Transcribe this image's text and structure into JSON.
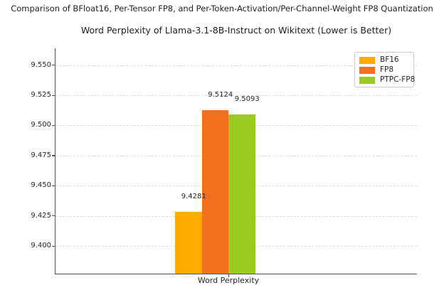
{
  "figure": {
    "suptitle": "Comparison of BFloat16, Per-Tensor FP8, and Per-Token-Activation/Per-Channel-Weight FP8 Quantization"
  },
  "chart_data": {
    "type": "bar",
    "title": "Word Perplexity of Llama-3.1-8B-Instruct on Wikitext (Lower is Better)",
    "categories": [
      "Word Perplexity"
    ],
    "series": [
      {
        "name": "BF16",
        "color": "#FFAB00",
        "values": [
          9.4281
        ],
        "value_labels": [
          "9.4281"
        ]
      },
      {
        "name": "FP8",
        "color": "#F2701D",
        "values": [
          9.5124
        ],
        "value_labels": [
          "9.5124"
        ]
      },
      {
        "name": "PTPC-FP8",
        "color": "#9CCB20",
        "values": [
          9.5093
        ],
        "value_labels": [
          "9.5093"
        ]
      }
    ],
    "xlabel": "",
    "ylabel": "",
    "ylim": [
      9.377,
      9.564
    ],
    "yticks": [
      9.4,
      9.425,
      9.45,
      9.475,
      9.5,
      9.525,
      9.55
    ],
    "ytick_labels": [
      "9.400",
      "9.425",
      "9.450",
      "9.475",
      "9.500",
      "9.525",
      "9.550"
    ],
    "grid": {
      "axis": "y",
      "style": "dashed",
      "color": "#dcdcdc"
    },
    "legend": {
      "position": "upper-right",
      "entries": [
        "BF16",
        "FP8",
        "PTPC-FP8"
      ]
    }
  },
  "colors": {
    "background": "#FFFFFF",
    "spine": "#555555",
    "text": "#262626",
    "grid": "#DCDCDC"
  }
}
